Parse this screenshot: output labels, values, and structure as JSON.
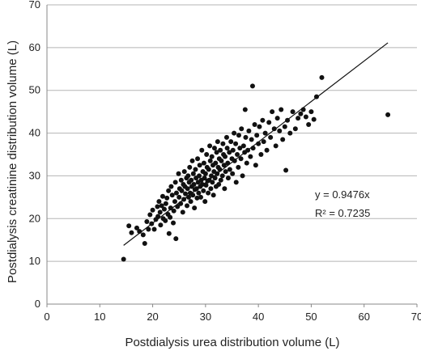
{
  "chart_data": {
    "type": "scatter",
    "xlabel": "Postdialysis urea distribution volume (L)",
    "ylabel": "Postdialysis creatinine distribution volume (L)",
    "xlim": [
      0,
      70
    ],
    "ylim": [
      0,
      70
    ],
    "x_ticks": [
      0,
      10,
      20,
      30,
      40,
      50,
      60,
      70
    ],
    "y_ticks": [
      0,
      10,
      20,
      30,
      40,
      50,
      60,
      70
    ],
    "grid": "horizontal",
    "legend": "none",
    "annotations": {
      "equation": "y = 0.9476x",
      "r_squared": "R² = 0.7235"
    },
    "trendline": {
      "slope": 0.9476,
      "x_range": [
        14.5,
        64.5
      ]
    },
    "colors": {
      "points": "#111111",
      "grid": "#b5b5b5",
      "axis": "#888888"
    },
    "series": [
      {
        "points": [
          [
            14.5,
            10.5
          ],
          [
            15.5,
            18.3
          ],
          [
            16.0,
            16.7
          ],
          [
            17.0,
            17.8
          ],
          [
            17.5,
            17.0
          ],
          [
            18.2,
            16.2
          ],
          [
            18.5,
            14.2
          ],
          [
            18.9,
            19.3
          ],
          [
            19.2,
            17.5
          ],
          [
            19.5,
            20.9
          ],
          [
            19.8,
            18.8
          ],
          [
            20.0,
            22.0
          ],
          [
            20.3,
            17.5
          ],
          [
            20.6,
            19.8
          ],
          [
            20.9,
            22.8
          ],
          [
            21.0,
            20.5
          ],
          [
            21.2,
            24.0
          ],
          [
            21.4,
            21.5
          ],
          [
            21.5,
            18.5
          ],
          [
            21.7,
            23.0
          ],
          [
            21.9,
            25.2
          ],
          [
            22.0,
            20.0
          ],
          [
            22.2,
            22.2
          ],
          [
            22.4,
            19.5
          ],
          [
            22.5,
            23.5
          ],
          [
            22.7,
            24.8
          ],
          [
            22.9,
            21.0
          ],
          [
            23.0,
            26.5
          ],
          [
            23.1,
            16.5
          ],
          [
            23.3,
            20.3
          ],
          [
            23.4,
            22.5
          ],
          [
            23.5,
            27.5
          ],
          [
            23.7,
            25.5
          ],
          [
            23.9,
            19.0
          ],
          [
            24.0,
            21.8
          ],
          [
            24.2,
            24.0
          ],
          [
            24.3,
            28.5
          ],
          [
            24.4,
            15.3
          ],
          [
            24.5,
            26.0
          ],
          [
            24.7,
            22.8
          ],
          [
            24.9,
            30.5
          ],
          [
            25.0,
            25.0
          ],
          [
            25.1,
            27.0
          ],
          [
            25.3,
            23.5
          ],
          [
            25.4,
            29.0
          ],
          [
            25.5,
            26.5
          ],
          [
            25.7,
            21.5
          ],
          [
            25.8,
            28.0
          ],
          [
            25.9,
            24.5
          ],
          [
            26.0,
            31.0
          ],
          [
            26.1,
            27.5
          ],
          [
            26.2,
            25.8
          ],
          [
            26.4,
            29.5
          ],
          [
            26.5,
            23.0
          ],
          [
            26.6,
            27.0
          ],
          [
            26.7,
            30.0
          ],
          [
            26.8,
            25.0
          ],
          [
            26.9,
            28.5
          ],
          [
            27.0,
            32.0
          ],
          [
            27.1,
            26.0
          ],
          [
            27.2,
            24.0
          ],
          [
            27.3,
            29.0
          ],
          [
            27.4,
            27.5
          ],
          [
            27.5,
            33.5
          ],
          [
            27.6,
            25.5
          ],
          [
            27.7,
            30.5
          ],
          [
            27.8,
            28.0
          ],
          [
            27.9,
            22.5
          ],
          [
            28.0,
            26.8
          ],
          [
            28.1,
            31.5
          ],
          [
            28.2,
            29.5
          ],
          [
            28.3,
            27.0
          ],
          [
            28.4,
            24.8
          ],
          [
            28.5,
            34.0
          ],
          [
            28.6,
            28.5
          ],
          [
            28.7,
            26.0
          ],
          [
            28.8,
            30.0
          ],
          [
            28.9,
            32.5
          ],
          [
            29.0,
            27.5
          ],
          [
            29.1,
            25.0
          ],
          [
            29.2,
            29.0
          ],
          [
            29.3,
            36.0
          ],
          [
            29.4,
            28.0
          ],
          [
            29.5,
            31.0
          ],
          [
            29.6,
            26.5
          ],
          [
            29.7,
            33.0
          ],
          [
            29.8,
            29.5
          ],
          [
            29.9,
            24.0
          ],
          [
            30.0,
            30.5
          ],
          [
            30.1,
            27.8
          ],
          [
            30.2,
            35.0
          ],
          [
            30.3,
            32.0
          ],
          [
            30.4,
            28.8
          ],
          [
            30.5,
            26.0
          ],
          [
            30.6,
            31.5
          ],
          [
            30.7,
            29.0
          ],
          [
            30.8,
            37.0
          ],
          [
            30.9,
            33.5
          ],
          [
            31.0,
            27.0
          ],
          [
            31.1,
            30.0
          ],
          [
            31.2,
            34.5
          ],
          [
            31.3,
            28.5
          ],
          [
            31.4,
            32.5
          ],
          [
            31.5,
            25.5
          ],
          [
            31.6,
            31.0
          ],
          [
            31.7,
            36.5
          ],
          [
            31.8,
            29.5
          ],
          [
            31.9,
            33.0
          ],
          [
            32.0,
            27.5
          ],
          [
            32.1,
            35.5
          ],
          [
            32.2,
            30.5
          ],
          [
            32.3,
            38.0
          ],
          [
            32.4,
            32.0
          ],
          [
            32.5,
            28.0
          ],
          [
            32.6,
            34.0
          ],
          [
            32.7,
            31.5
          ],
          [
            32.8,
            36.0
          ],
          [
            32.9,
            29.0
          ],
          [
            33.0,
            33.5
          ],
          [
            33.2,
            30.0
          ],
          [
            33.3,
            37.5
          ],
          [
            33.4,
            35.0
          ],
          [
            33.5,
            32.5
          ],
          [
            33.6,
            27.0
          ],
          [
            33.7,
            34.5
          ],
          [
            33.8,
            31.0
          ],
          [
            34.0,
            39.0
          ],
          [
            34.1,
            36.5
          ],
          [
            34.2,
            33.0
          ],
          [
            34.3,
            29.5
          ],
          [
            34.5,
            35.5
          ],
          [
            34.6,
            31.5
          ],
          [
            34.8,
            38.0
          ],
          [
            35.0,
            34.0
          ],
          [
            35.1,
            30.5
          ],
          [
            35.2,
            36.0
          ],
          [
            35.4,
            40.0
          ],
          [
            35.5,
            33.5
          ],
          [
            35.7,
            37.5
          ],
          [
            35.8,
            28.5
          ],
          [
            36.0,
            35.0
          ],
          [
            36.2,
            32.0
          ],
          [
            36.3,
            39.5
          ],
          [
            36.5,
            36.5
          ],
          [
            36.7,
            34.0
          ],
          [
            36.8,
            41.0
          ],
          [
            37.0,
            30.0
          ],
          [
            37.2,
            37.0
          ],
          [
            37.4,
            35.5
          ],
          [
            37.5,
            45.5
          ],
          [
            37.6,
            39.0
          ],
          [
            37.8,
            33.0
          ],
          [
            38.0,
            36.0
          ],
          [
            38.2,
            40.5
          ],
          [
            38.5,
            34.5
          ],
          [
            38.7,
            38.5
          ],
          [
            38.9,
            51.0
          ],
          [
            39.0,
            36.5
          ],
          [
            39.3,
            42.0
          ],
          [
            39.5,
            32.5
          ],
          [
            39.7,
            39.5
          ],
          [
            40.0,
            37.5
          ],
          [
            40.2,
            41.5
          ],
          [
            40.5,
            35.0
          ],
          [
            40.8,
            43.0
          ],
          [
            41.0,
            38.0
          ],
          [
            41.3,
            40.0
          ],
          [
            41.6,
            36.0
          ],
          [
            42.0,
            42.5
          ],
          [
            42.3,
            39.0
          ],
          [
            42.6,
            45.0
          ],
          [
            43.0,
            41.0
          ],
          [
            43.3,
            37.0
          ],
          [
            43.6,
            43.5
          ],
          [
            44.0,
            40.5
          ],
          [
            44.3,
            45.5
          ],
          [
            44.6,
            38.5
          ],
          [
            45.0,
            41.5
          ],
          [
            45.2,
            31.3
          ],
          [
            45.5,
            43.0
          ],
          [
            46.0,
            40.0
          ],
          [
            46.5,
            45.0
          ],
          [
            47.0,
            41.0
          ],
          [
            47.5,
            43.5
          ],
          [
            48.0,
            44.5
          ],
          [
            48.5,
            45.5
          ],
          [
            49.0,
            43.8
          ],
          [
            49.5,
            42.0
          ],
          [
            50.0,
            45.0
          ],
          [
            50.5,
            43.2
          ],
          [
            51.0,
            48.5
          ],
          [
            52.0,
            53.0
          ],
          [
            64.5,
            44.3
          ]
        ]
      }
    ]
  }
}
